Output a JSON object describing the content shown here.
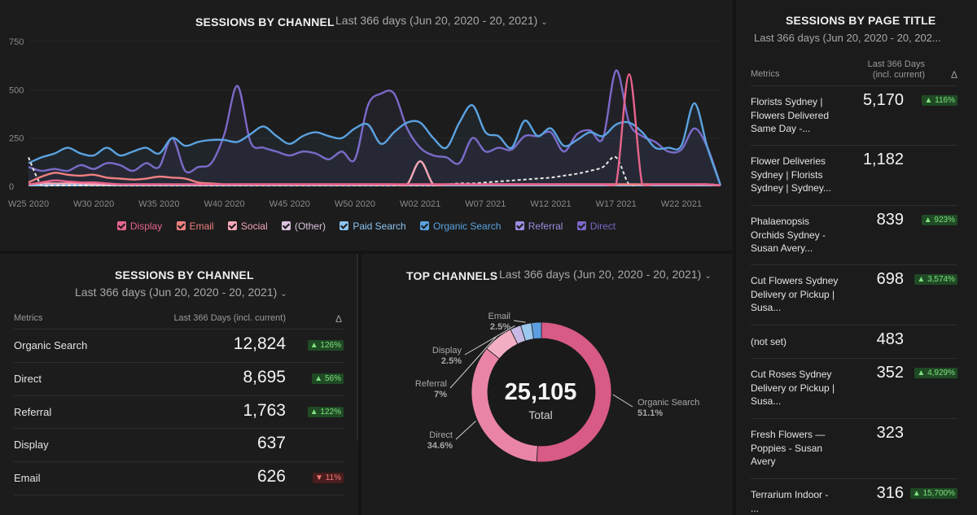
{
  "line_panel": {
    "title": "SESSIONS BY CHANNEL",
    "date_range": "Last 366 days (Jun 20, 2020 - 20, 2021)"
  },
  "table_panel": {
    "title": "SESSIONS BY CHANNEL",
    "date_range": "Last 366 days (Jun 20, 2020 - 20, 2021)",
    "col_metrics": "Metrics",
    "col_value": "Last 366 Days (incl. current)",
    "col_delta": "Δ",
    "rows": [
      {
        "label": "Organic Search",
        "value": "12,824",
        "delta": "▲ 126%",
        "dir": "up"
      },
      {
        "label": "Direct",
        "value": "8,695",
        "delta": "▲ 56%",
        "dir": "up"
      },
      {
        "label": "Referral",
        "value": "1,763",
        "delta": "▲ 122%",
        "dir": "up"
      },
      {
        "label": "Display",
        "value": "637",
        "delta": "",
        "dir": ""
      },
      {
        "label": "Email",
        "value": "626",
        "delta": "▼ 11%",
        "dir": "down"
      }
    ]
  },
  "donut_panel": {
    "title": "TOP CHANNELS",
    "date_range": "Last 366 days (Jun 20, 2020 - 20, 2021)",
    "total": "25,105",
    "total_label": "Total"
  },
  "pages_panel": {
    "title": "SESSIONS BY PAGE TITLE",
    "date_range": "Last 366 days (Jun 20, 2020 - 20, 202...",
    "col_metrics": "Metrics",
    "col_value_1": "Last 366 Days",
    "col_value_2": "(incl. current)",
    "col_delta": "Δ",
    "rows": [
      {
        "label": "Florists Sydney | Flowers Delivered Same Day -...",
        "value": "5,170",
        "delta": "▲ 116%"
      },
      {
        "label": "Flower Deliveries Sydney | Florists Sydney | Sydney...",
        "value": "1,182",
        "delta": ""
      },
      {
        "label": "Phalaenopsis Orchids Sydney - Susan Avery...",
        "value": "839",
        "delta": "▲ 923%"
      },
      {
        "label": "Cut Flowers Sydney Delivery or Pickup | Susa...",
        "value": "698",
        "delta": "▲ 3,574%"
      },
      {
        "label": "(not set)",
        "value": "483",
        "delta": ""
      },
      {
        "label": "Cut Roses Sydney Delivery or Pickup | Susa...",
        "value": "352",
        "delta": "▲ 4,929%"
      },
      {
        "label": "Fresh Flowers — Poppies - Susan Avery",
        "value": "323",
        "delta": ""
      },
      {
        "label": "Terrarium Indoor - ...",
        "value": "316",
        "delta": "▲ 15,700%"
      }
    ]
  },
  "chart_data": [
    {
      "type": "line",
      "title": "SESSIONS BY CHANNEL",
      "ylim": [
        0,
        750
      ],
      "yticks": [
        "750",
        "500",
        "250",
        "0"
      ],
      "ytick_values": [
        750,
        500,
        250,
        0
      ],
      "xtick_labels": [
        "W25 2020",
        "W30 2020",
        "W35 2020",
        "W40 2020",
        "W45 2020",
        "W50 2020",
        "W02 2021",
        "W07 2021",
        "W12 2021",
        "W17 2021",
        "W22 2021"
      ],
      "xtick_index": [
        0,
        5,
        10,
        15,
        20,
        25,
        30,
        35,
        40,
        45,
        50
      ],
      "grid": true,
      "legend_position": "bottom",
      "series": [
        {
          "name": "Display",
          "color": "#e8648c",
          "values": [
            10,
            20,
            30,
            25,
            20,
            20,
            15,
            10,
            10,
            10,
            10,
            10,
            10,
            10,
            10,
            10,
            10,
            10,
            10,
            10,
            10,
            10,
            10,
            10,
            10,
            10,
            10,
            10,
            10,
            10,
            10,
            10,
            10,
            10,
            10,
            10,
            10,
            10,
            10,
            10,
            10,
            10,
            10,
            10,
            10,
            10,
            580,
            10,
            10,
            10,
            10,
            10,
            10,
            5
          ]
        },
        {
          "name": "Email",
          "color": "#f08080",
          "values": [
            20,
            50,
            70,
            60,
            55,
            60,
            45,
            40,
            35,
            40,
            50,
            45,
            40,
            20,
            15,
            10,
            10,
            10,
            10,
            10,
            10,
            10,
            10,
            10,
            10,
            10,
            10,
            10,
            10,
            10,
            10,
            10,
            10,
            10,
            10,
            10,
            10,
            10,
            10,
            10,
            10,
            10,
            10,
            10,
            10,
            10,
            10,
            10,
            10,
            10,
            10,
            10,
            10,
            5
          ]
        },
        {
          "name": "Social",
          "color": "#f4a8b8",
          "values": [
            10,
            15,
            15,
            15,
            15,
            10,
            10,
            10,
            10,
            10,
            10,
            10,
            10,
            10,
            10,
            10,
            10,
            10,
            10,
            10,
            10,
            10,
            10,
            10,
            10,
            10,
            10,
            10,
            10,
            10,
            130,
            10,
            10,
            10,
            10,
            10,
            10,
            10,
            10,
            10,
            10,
            10,
            10,
            10,
            10,
            10,
            10,
            10,
            10,
            10,
            10,
            10,
            10,
            5
          ]
        },
        {
          "name": "(Other)",
          "color": "#e8e8e8",
          "values": [
            150,
            5,
            5,
            5,
            5,
            5,
            5,
            5,
            5,
            5,
            5,
            5,
            5,
            5,
            5,
            5,
            5,
            5,
            5,
            5,
            5,
            5,
            5,
            5,
            5,
            5,
            5,
            5,
            5,
            5,
            5,
            5,
            10,
            15,
            15,
            20,
            25,
            30,
            35,
            40,
            45,
            55,
            65,
            80,
            100,
            150,
            10,
            10,
            10,
            10,
            10,
            10,
            10,
            5
          ]
        },
        {
          "name": "Paid Search",
          "color": "#8cc4f0",
          "values": [
            5,
            5,
            5,
            5,
            5,
            5,
            5,
            5,
            5,
            5,
            5,
            5,
            5,
            5,
            5,
            5,
            5,
            5,
            5,
            5,
            5,
            5,
            5,
            5,
            5,
            5,
            5,
            5,
            5,
            5,
            5,
            5,
            5,
            5,
            5,
            5,
            5,
            5,
            5,
            5,
            5,
            5,
            5,
            5,
            5,
            5,
            5,
            5,
            5,
            5,
            5,
            5,
            5,
            5
          ]
        },
        {
          "name": "Organic Search",
          "color": "#5aa2e0",
          "values": [
            120,
            150,
            170,
            200,
            170,
            160,
            200,
            160,
            180,
            200,
            170,
            250,
            210,
            230,
            240,
            240,
            230,
            270,
            310,
            260,
            220,
            260,
            280,
            260,
            250,
            300,
            320,
            220,
            280,
            330,
            330,
            250,
            200,
            330,
            420,
            280,
            260,
            200,
            340,
            260,
            300,
            210,
            240,
            280,
            260,
            320,
            330,
            280,
            200,
            200,
            210,
            430,
            200,
            5
          ]
        },
        {
          "name": "Referral",
          "color": "#9e8ce0",
          "values": [
            5,
            5,
            5,
            5,
            5,
            5,
            5,
            5,
            5,
            5,
            5,
            5,
            5,
            5,
            5,
            5,
            5,
            5,
            5,
            5,
            5,
            5,
            5,
            5,
            5,
            5,
            5,
            5,
            5,
            5,
            5,
            5,
            5,
            5,
            5,
            5,
            5,
            5,
            5,
            5,
            5,
            5,
            5,
            5,
            5,
            5,
            5,
            5,
            5,
            5,
            5,
            5,
            5,
            5
          ]
        },
        {
          "name": "Direct",
          "color": "#7d68c8",
          "values": [
            100,
            80,
            90,
            80,
            110,
            90,
            120,
            110,
            80,
            120,
            100,
            250,
            80,
            100,
            120,
            270,
            520,
            230,
            200,
            180,
            160,
            180,
            170,
            140,
            180,
            140,
            420,
            480,
            480,
            300,
            200,
            160,
            150,
            120,
            250,
            180,
            200,
            190,
            260,
            260,
            280,
            180,
            270,
            290,
            250,
            600,
            330,
            260,
            230,
            180,
            190,
            300,
            200,
            5
          ]
        }
      ]
    },
    {
      "type": "pie",
      "title": "TOP CHANNELS",
      "slices": [
        {
          "label": "Organic Search",
          "value": 51.1,
          "pct": "51.1%",
          "color": "#d85a86"
        },
        {
          "label": "Direct",
          "value": 34.6,
          "pct": "34.6%",
          "color": "#e984a6"
        },
        {
          "label": "Referral",
          "value": 7,
          "pct": "7%",
          "color": "#f2afc4"
        },
        {
          "label": "Display",
          "value": 2.5,
          "pct": "2.5%",
          "color": "#c7b9e3"
        },
        {
          "label": "Email",
          "value": 2.5,
          "pct": "2.5%",
          "color": "#9cc8ee"
        },
        {
          "label": "",
          "value": 2.3,
          "pct": "",
          "color": "#5c9ee0"
        }
      ]
    }
  ]
}
